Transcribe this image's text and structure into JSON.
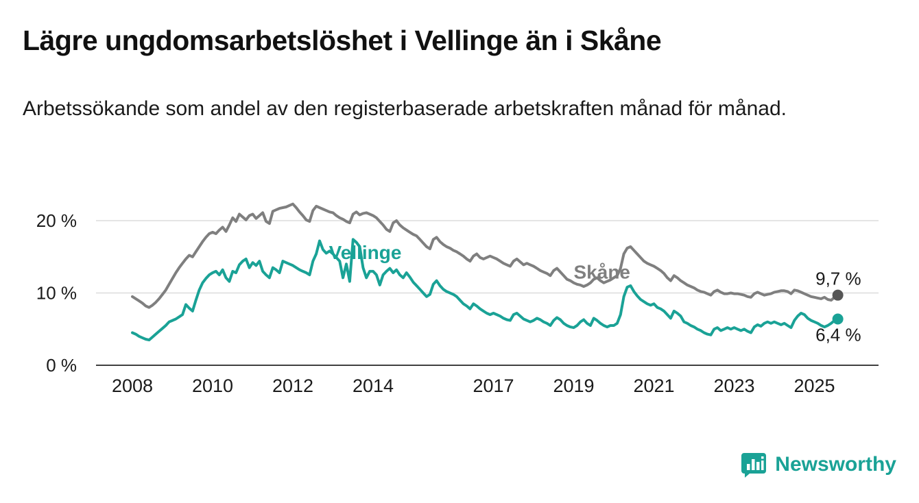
{
  "chart_data": {
    "type": "line",
    "title": "Lägre ungdomsarbetslöshet i Vellinge än i Skåne",
    "subtitle": "Arbetssökande som andel av den registerbaserade arbetskraften månad för månad.",
    "frequency": "monthly",
    "x_start_year": 2008,
    "x_ticks": [
      2008,
      2010,
      2012,
      2014,
      2017,
      2019,
      2021,
      2023,
      2025
    ],
    "y_ticks": [
      {
        "value": 0,
        "label": "0 %"
      },
      {
        "value": 10,
        "label": "10 %"
      },
      {
        "value": 20,
        "label": "20 %"
      }
    ],
    "ylim": [
      0,
      23
    ],
    "grid": true,
    "legend_position": "inline-labels",
    "colors": {
      "grid": "#dcdcdc",
      "axis": "#3f3f3f",
      "text": "#1a1a1a"
    },
    "series": [
      {
        "id": "skane",
        "name": "Skåne",
        "color": "#7f7f7f",
        "dot_color": "#555555",
        "end_label": "9,7 %",
        "end_value": 9.7,
        "values": [
          9.5,
          9.2,
          8.9,
          8.6,
          8.2,
          8.0,
          8.3,
          8.7,
          9.2,
          9.8,
          10.4,
          11.2,
          12.0,
          12.8,
          13.5,
          14.1,
          14.7,
          15.2,
          15.0,
          15.7,
          16.4,
          17.1,
          17.7,
          18.2,
          18.4,
          18.2,
          18.7,
          19.1,
          18.5,
          19.4,
          20.4,
          19.9,
          20.9,
          20.5,
          20.1,
          20.7,
          20.9,
          20.3,
          20.7,
          21.1,
          19.9,
          19.6,
          21.3,
          21.5,
          21.7,
          21.8,
          21.9,
          22.1,
          22.3,
          21.8,
          21.2,
          20.7,
          20.1,
          19.9,
          21.4,
          22.0,
          21.8,
          21.6,
          21.4,
          21.2,
          21.1,
          20.7,
          20.4,
          20.2,
          19.9,
          19.7,
          20.9,
          21.2,
          20.8,
          21.0,
          21.1,
          20.9,
          20.7,
          20.4,
          19.9,
          19.4,
          18.8,
          18.5,
          19.7,
          20.0,
          19.4,
          19.0,
          18.7,
          18.4,
          18.1,
          17.9,
          17.4,
          16.9,
          16.4,
          16.1,
          17.4,
          17.7,
          17.1,
          16.7,
          16.4,
          16.2,
          15.9,
          15.7,
          15.4,
          15.1,
          14.7,
          14.4,
          15.1,
          15.4,
          14.9,
          14.7,
          14.9,
          15.1,
          14.9,
          14.7,
          14.4,
          14.1,
          13.9,
          13.7,
          14.4,
          14.7,
          14.3,
          13.9,
          14.1,
          13.9,
          13.7,
          13.4,
          13.1,
          12.9,
          12.7,
          12.4,
          13.1,
          13.4,
          12.9,
          12.4,
          11.9,
          11.7,
          11.4,
          11.2,
          11.1,
          10.9,
          11.1,
          11.4,
          11.9,
          12.1,
          11.7,
          11.4,
          11.6,
          11.8,
          12.1,
          12.4,
          13.4,
          15.4,
          16.2,
          16.4,
          15.9,
          15.4,
          14.9,
          14.4,
          14.1,
          13.9,
          13.7,
          13.4,
          13.1,
          12.7,
          12.1,
          11.7,
          12.4,
          12.1,
          11.7,
          11.4,
          11.1,
          10.9,
          10.7,
          10.4,
          10.2,
          10.1,
          9.9,
          9.7,
          10.2,
          10.4,
          10.1,
          9.9,
          9.9,
          10.0,
          9.9,
          9.9,
          9.8,
          9.7,
          9.5,
          9.4,
          9.9,
          10.1,
          9.9,
          9.7,
          9.8,
          9.9,
          10.1,
          10.2,
          10.3,
          10.3,
          10.2,
          9.9,
          10.4,
          10.3,
          10.1,
          9.9,
          9.7,
          9.5,
          9.4,
          9.3,
          9.2,
          9.4,
          9.1,
          9.0,
          9.4,
          9.7
        ]
      },
      {
        "id": "vellinge",
        "name": "Vellinge",
        "color": "#1aa296",
        "dot_color": "#1aa296",
        "end_label": "6,4 %",
        "end_value": 6.4,
        "values": [
          4.5,
          4.3,
          4.0,
          3.8,
          3.6,
          3.5,
          3.9,
          4.3,
          4.7,
          5.1,
          5.5,
          6.0,
          6.2,
          6.4,
          6.7,
          7.0,
          8.4,
          7.9,
          7.5,
          9.0,
          10.4,
          11.4,
          12.0,
          12.5,
          12.8,
          13.0,
          12.5,
          13.2,
          12.1,
          11.6,
          13.0,
          12.8,
          13.9,
          14.4,
          14.7,
          13.5,
          14.2,
          13.8,
          14.4,
          13.0,
          12.5,
          12.1,
          13.5,
          13.2,
          12.8,
          14.4,
          14.2,
          14.0,
          13.8,
          13.5,
          13.2,
          13.0,
          12.8,
          12.5,
          14.4,
          15.4,
          17.2,
          16.0,
          15.5,
          15.8,
          15.4,
          14.9,
          14.4,
          12.1,
          14.0,
          11.6,
          17.4,
          17.0,
          16.4,
          13.5,
          12.1,
          13.0,
          13.0,
          12.5,
          11.1,
          12.5,
          13.0,
          13.4,
          12.8,
          13.2,
          12.5,
          12.1,
          12.8,
          12.2,
          11.5,
          11.0,
          10.5,
          10.0,
          9.5,
          9.8,
          11.2,
          11.7,
          11.0,
          10.5,
          10.2,
          10.0,
          9.8,
          9.5,
          9.0,
          8.5,
          8.2,
          7.8,
          8.5,
          8.2,
          7.8,
          7.5,
          7.2,
          7.0,
          7.2,
          7.0,
          6.8,
          6.5,
          6.3,
          6.2,
          7.0,
          7.2,
          6.8,
          6.4,
          6.2,
          6.0,
          6.2,
          6.5,
          6.3,
          6.0,
          5.8,
          5.5,
          6.2,
          6.6,
          6.3,
          5.8,
          5.5,
          5.3,
          5.2,
          5.5,
          6.0,
          6.3,
          5.8,
          5.5,
          6.5,
          6.2,
          5.8,
          5.5,
          5.3,
          5.5,
          5.5,
          5.8,
          7.0,
          9.5,
          10.8,
          11.0,
          10.2,
          9.6,
          9.1,
          8.8,
          8.5,
          8.3,
          8.5,
          8.0,
          7.8,
          7.5,
          7.0,
          6.5,
          7.5,
          7.2,
          6.8,
          6.0,
          5.8,
          5.5,
          5.3,
          5.0,
          4.8,
          4.5,
          4.3,
          4.2,
          5.0,
          5.2,
          4.8,
          5.0,
          5.2,
          5.0,
          5.2,
          5.0,
          4.8,
          5.0,
          4.7,
          4.5,
          5.3,
          5.6,
          5.4,
          5.8,
          6.0,
          5.8,
          6.0,
          5.8,
          5.6,
          5.8,
          5.5,
          5.2,
          6.2,
          6.8,
          7.2,
          7.0,
          6.5,
          6.2,
          6.0,
          5.8,
          5.5,
          5.3,
          5.5,
          5.8,
          6.2,
          6.4
        ]
      }
    ],
    "annotations": [
      {
        "id": "vellinge",
        "text": "Vellinge",
        "x": 2012.9,
        "y": 14.7,
        "color": "#1aa296"
      },
      {
        "id": "skane",
        "text": "Skåne",
        "x": 2019.0,
        "y": 12.0,
        "color": "#7f7f7f"
      }
    ]
  },
  "branding": {
    "label": "Newsworthy",
    "icon": "newsworthy-barchart-bubble-icon",
    "color": "#1aa296"
  }
}
